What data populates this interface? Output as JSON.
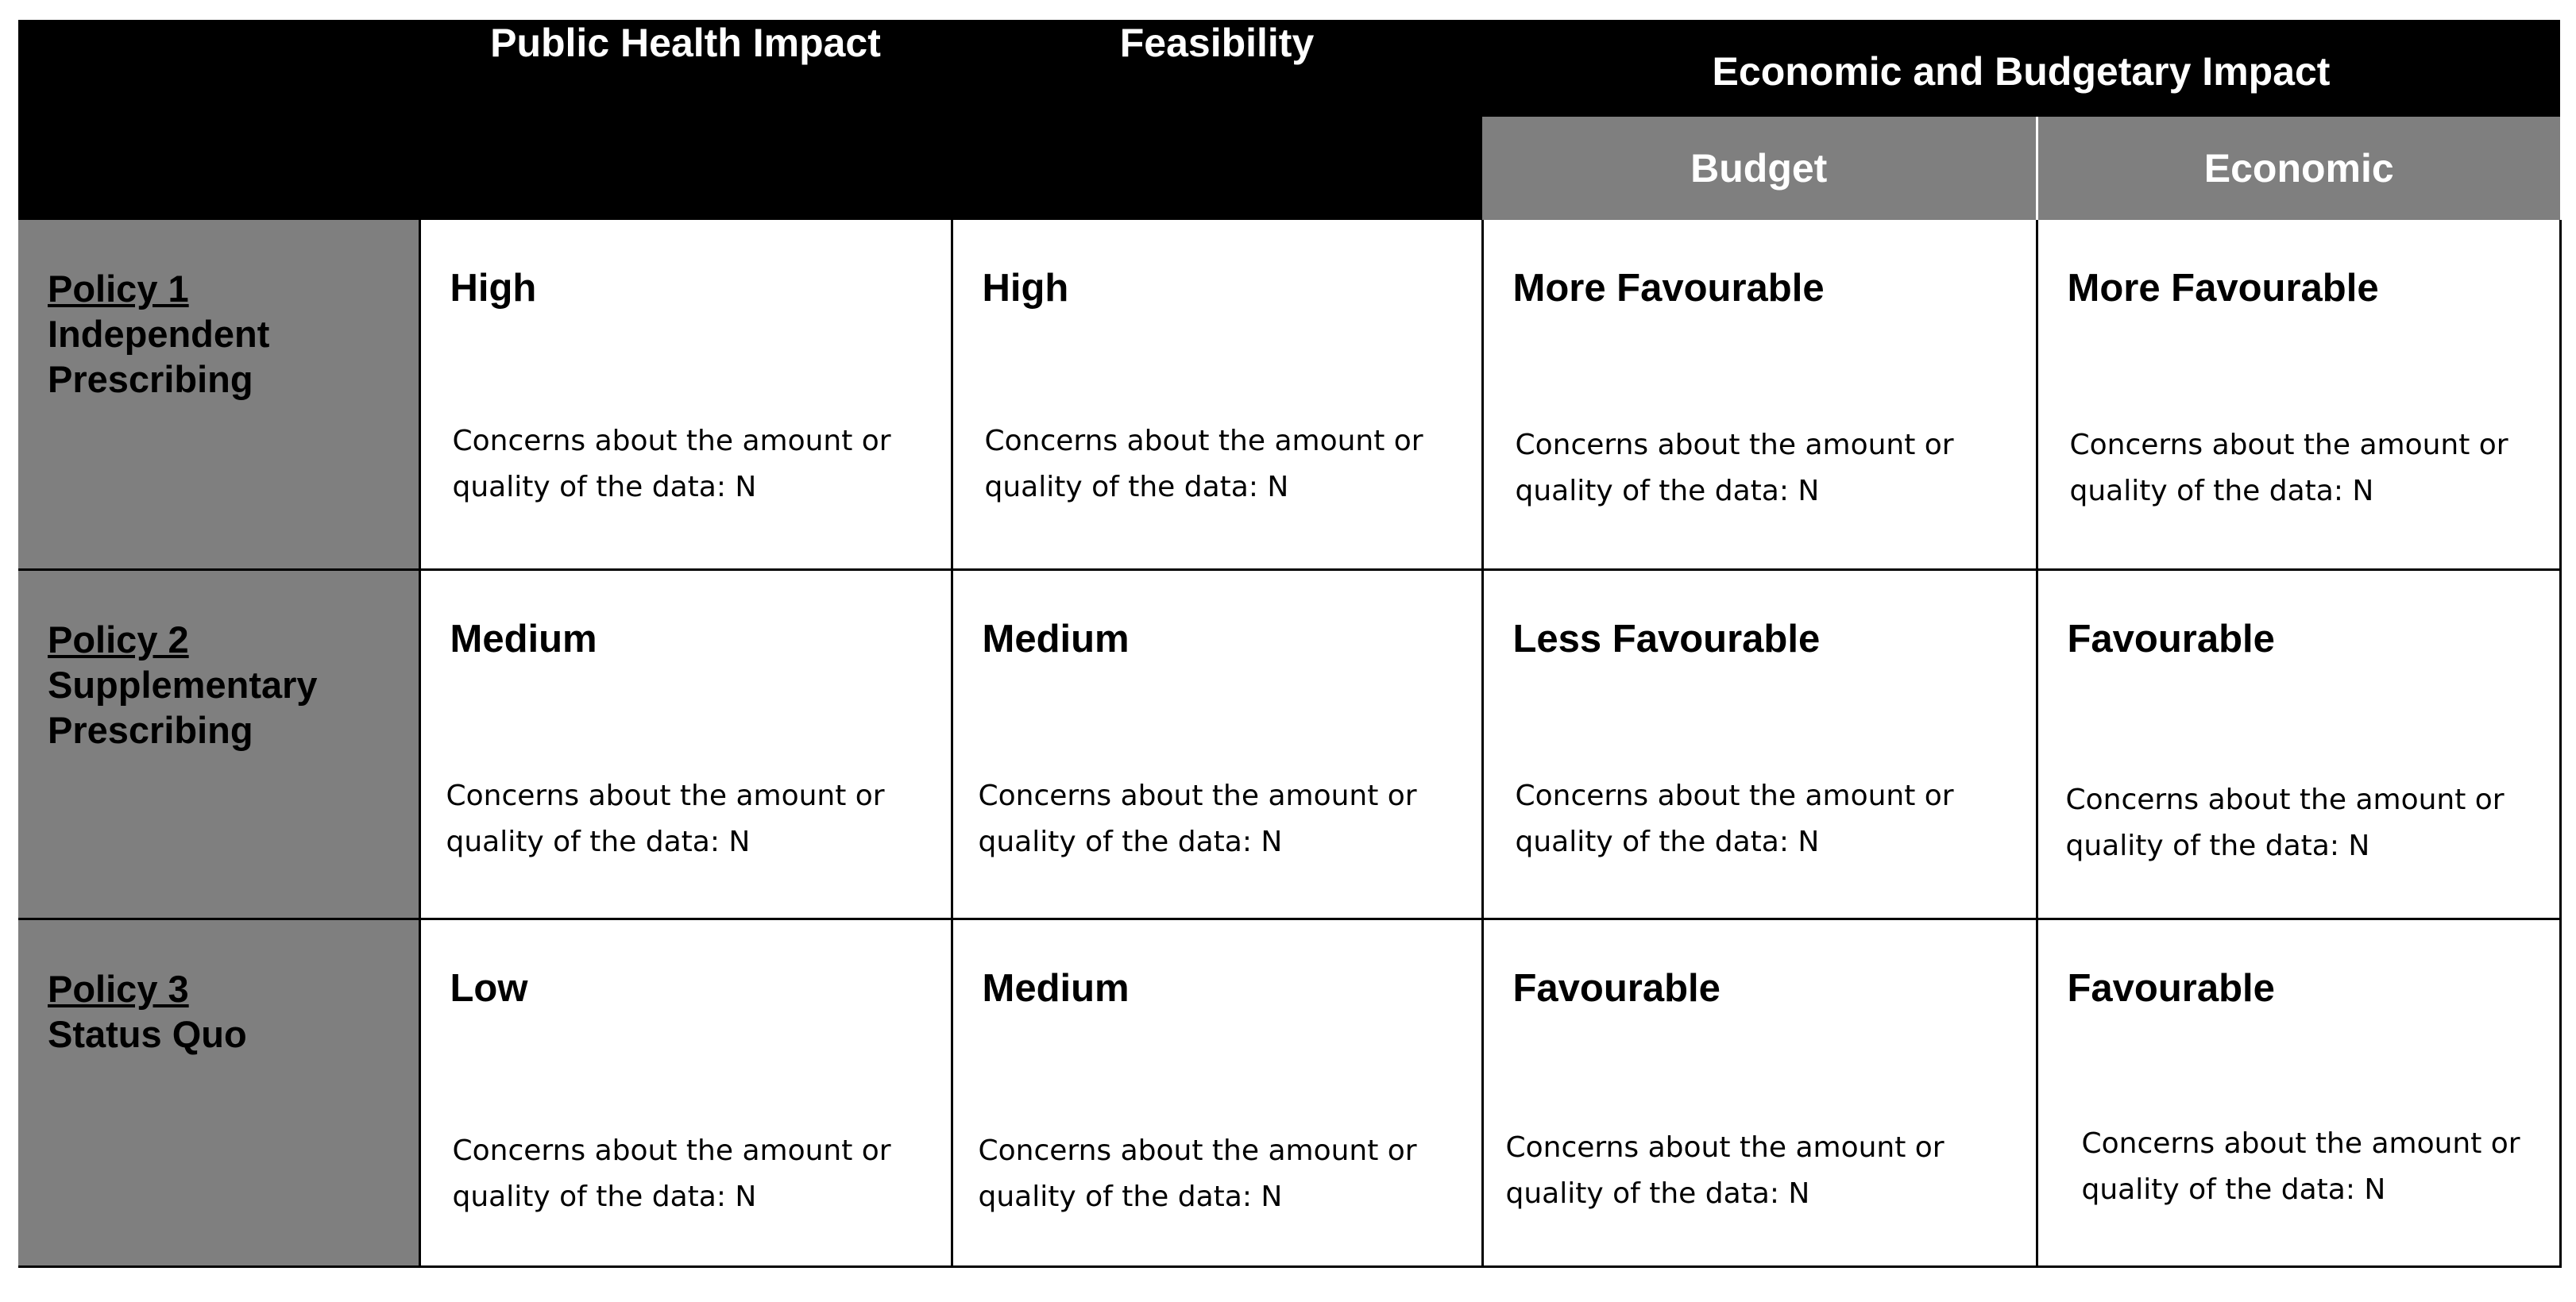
{
  "header": {
    "columns": {
      "public_health": "Public Health Impact",
      "feasibility": "Feasibility",
      "economic_budgetary": "Economic and Budgetary Impact"
    },
    "subcolumns": {
      "budget": "Budget",
      "economic": "Economic"
    }
  },
  "concern_text": {
    "line1": "Concerns about the amount or",
    "line2": "quality of the data: N"
  },
  "policies": [
    {
      "number": "Policy 1",
      "name_lines": [
        "Independent",
        "Prescribing"
      ],
      "ratings": {
        "public_health": "High",
        "feasibility": "High",
        "budget": "More Favourable",
        "economic": "More Favourable"
      }
    },
    {
      "number": "Policy 2",
      "name_lines": [
        "Supplementary",
        "Prescribing"
      ],
      "ratings": {
        "public_health": "Medium",
        "feasibility": "Medium",
        "budget": "Less Favourable",
        "economic": "Favourable"
      }
    },
    {
      "number": "Policy 3",
      "name_lines": [
        "Status Quo"
      ],
      "ratings": {
        "public_health": "Low",
        "feasibility": "Medium",
        "budget": "Favourable",
        "economic": "Favourable"
      }
    }
  ],
  "colors": {
    "header_bg": "#000000",
    "subheader_bg": "#7f7f7f",
    "label_column_bg": "#7f7f7f",
    "cell_bg": "#ffffff"
  }
}
